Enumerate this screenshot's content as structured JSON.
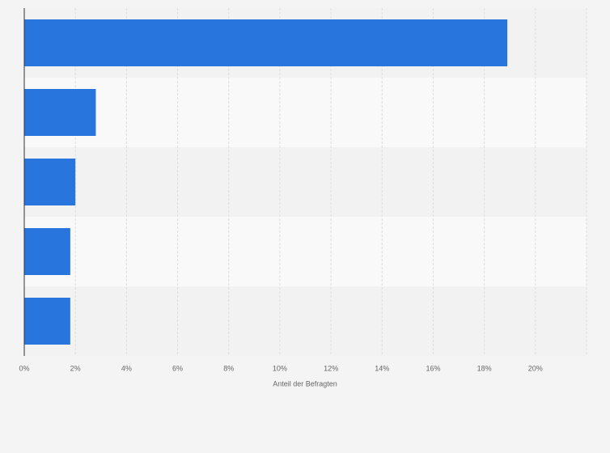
{
  "chart_data": {
    "type": "hbar",
    "x_label": "Anteil der Befragten",
    "categories": [
      null,
      null,
      null,
      null,
      null
    ],
    "values": [
      18.9,
      2.8,
      2.0,
      1.8,
      1.8
    ],
    "color": "#2876dd",
    "xlim": [
      0,
      22
    ],
    "xticks": [
      {
        "value": 0,
        "label": "0%"
      },
      {
        "value": 2,
        "label": "2%"
      },
      {
        "value": 4,
        "label": "4%"
      },
      {
        "value": 6,
        "label": "6%"
      },
      {
        "value": 8,
        "label": "8%"
      },
      {
        "value": 10,
        "label": "10%"
      },
      {
        "value": 12,
        "label": "12%"
      },
      {
        "value": 14,
        "label": "14%"
      },
      {
        "value": 16,
        "label": "16%"
      },
      {
        "value": 18,
        "label": "18%"
      },
      {
        "value": 20,
        "label": "20%"
      }
    ],
    "grid": true
  }
}
